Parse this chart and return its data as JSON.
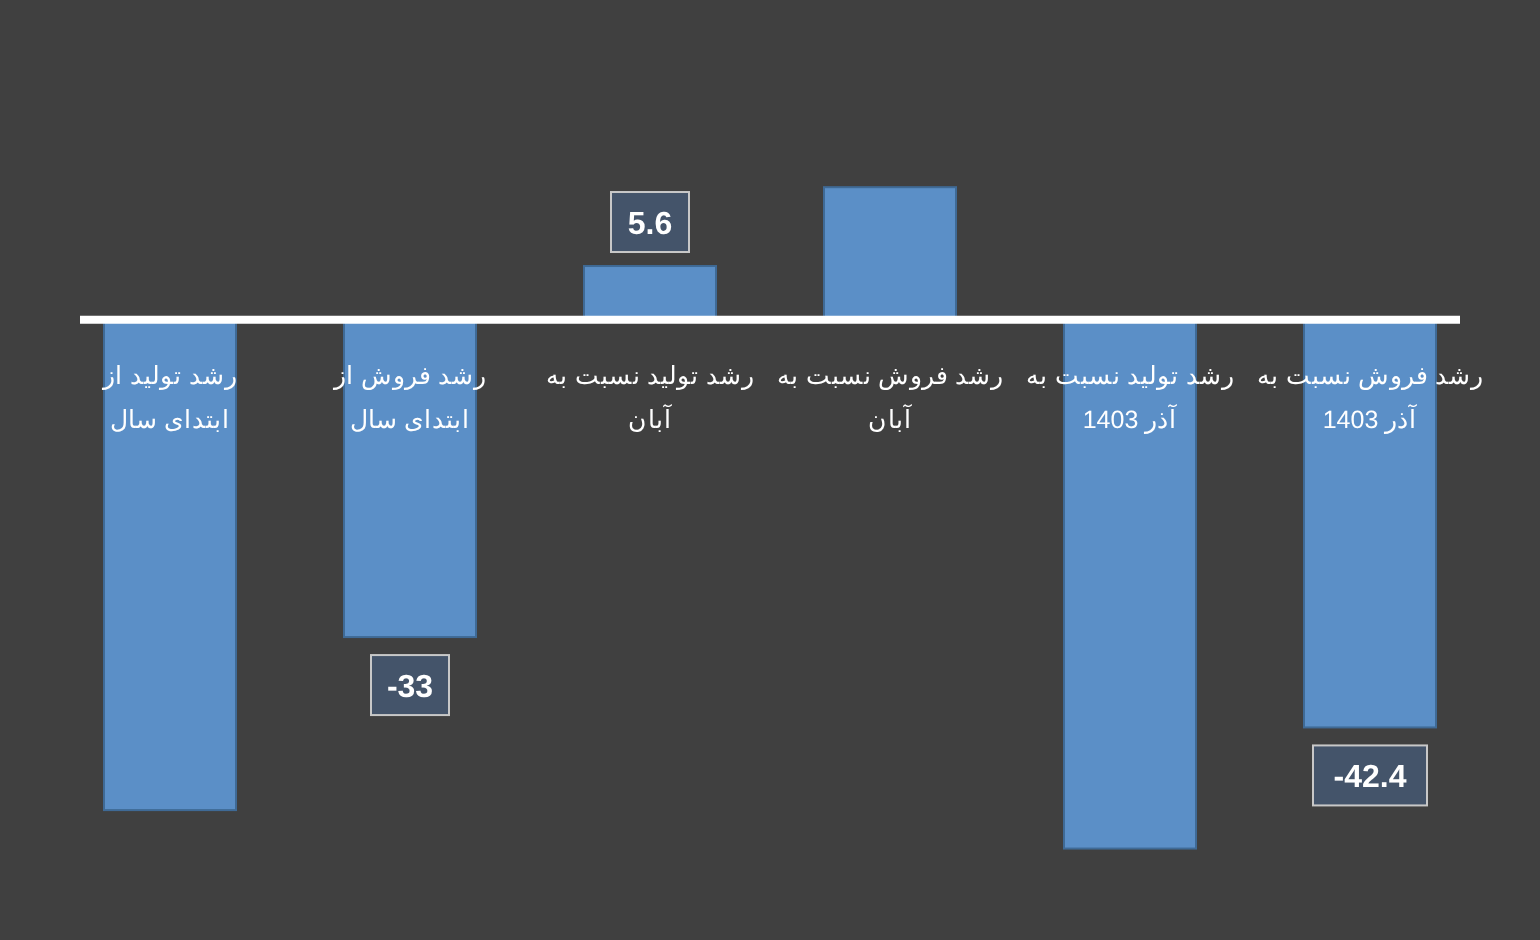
{
  "chart_data": {
    "type": "bar",
    "categories": [
      "رشد تولید از ابتدای سال",
      "رشد فروش از ابتدای سال",
      "رشد تولید نسبت به آبان",
      "رشد فروش نسبت به آبان",
      "رشد تولید نسبت به آذر 1403",
      "رشد فروش نسبت به آذر 1403"
    ],
    "values": [
      -51,
      -33,
      5.6,
      13.8,
      -55,
      -42.4
    ],
    "value_labels": [
      null,
      "-33",
      "5.6",
      null,
      null,
      "-42.4"
    ],
    "color": "#5b8fc7"
  }
}
